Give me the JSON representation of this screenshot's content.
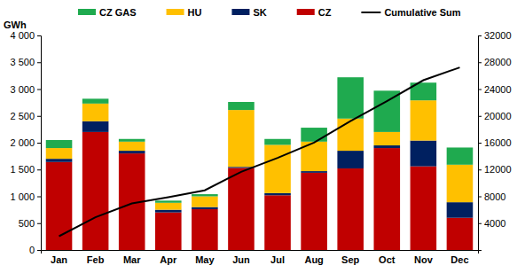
{
  "chart_data": {
    "type": "bar",
    "stacked": true,
    "ylabel": "GWh",
    "categories": [
      "Jan",
      "Feb",
      "Mar",
      "Apr",
      "May",
      "Jun",
      "Jul",
      "Aug",
      "Sep",
      "Oct",
      "Nov",
      "Dec"
    ],
    "series": [
      {
        "name": "CZ",
        "color": "#c00000",
        "values": [
          1640,
          2200,
          1800,
          700,
          760,
          1530,
          1020,
          1440,
          1520,
          1900,
          1560,
          600
        ]
      },
      {
        "name": "SK",
        "color": "#002060",
        "values": [
          60,
          200,
          50,
          50,
          40,
          20,
          40,
          30,
          330,
          50,
          480,
          290
        ]
      },
      {
        "name": "HU",
        "color": "#ffc000",
        "values": [
          200,
          330,
          170,
          130,
          200,
          1060,
          900,
          550,
          600,
          250,
          750,
          700
        ]
      },
      {
        "name": "CZ GAS",
        "color": "#1faa4f",
        "values": [
          150,
          90,
          50,
          40,
          40,
          150,
          110,
          260,
          770,
          770,
          330,
          320
        ]
      },
      {
        "name": "Cumulative Sum",
        "type": "line",
        "axis": "y2",
        "color": "#000000",
        "values": [
          2050,
          4870,
          6940,
          7860,
          8900,
          11660,
          13730,
          16010,
          19230,
          22200,
          25320,
          27230
        ]
      }
    ],
    "ylim": [
      0,
      4000
    ],
    "yticks": [
      0,
      500,
      {
        "value": 1000,
        "label": "1 000"
      },
      {
        "value": 1500,
        "label": "1 500"
      },
      {
        "value": 2000,
        "label": "2 000"
      },
      {
        "value": 2500,
        "label": "2 500"
      },
      {
        "value": 3000,
        "label": "3 000"
      },
      {
        "value": 3500,
        "label": "3 500"
      },
      {
        "value": 4000,
        "label": "4 000"
      }
    ],
    "y2lim": [
      0,
      32000
    ],
    "y2ticks": [
      4000,
      8000,
      12000,
      16000,
      20000,
      24000,
      28000,
      32000
    ],
    "legend": "top",
    "grid": false
  }
}
